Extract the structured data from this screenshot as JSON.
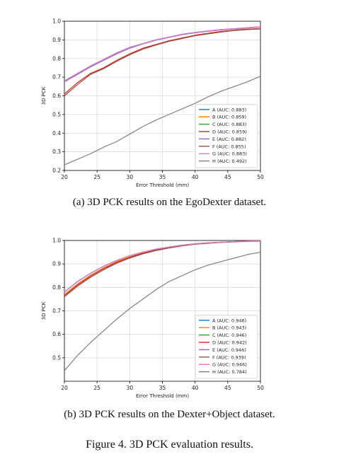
{
  "captions": {
    "a": "(a) 3D PCK results on the EgoDexter dataset.",
    "b": "(b) 3D PCK results on the Dexter+Object dataset.",
    "figure": "Figure 4. 3D PCK evaluation results."
  },
  "chart_data": [
    {
      "type": "line",
      "title": "",
      "xlabel": "Error Threshold (mm)",
      "ylabel": "3D PCK",
      "xlim": [
        20,
        50
      ],
      "ylim": [
        0.2,
        1.0
      ],
      "xticks": [
        "20",
        "25",
        "30",
        "35",
        "40",
        "45",
        "50"
      ],
      "yticks": [
        "0.2",
        "0.3",
        "0.4",
        "0.5",
        "0.6",
        "0.7",
        "0.8",
        "0.9",
        "1.0"
      ],
      "grid": true,
      "legend_position": "lower-right",
      "x": [
        20,
        22,
        24,
        26,
        28,
        30,
        32,
        34,
        36,
        38,
        40,
        42,
        44,
        46,
        48,
        50
      ],
      "series": [
        {
          "name": "A (AUC: 0.883)",
          "color": "#1f77b4",
          "values": [
            0.68,
            0.72,
            0.76,
            0.795,
            0.83,
            0.86,
            0.88,
            0.9,
            0.915,
            0.93,
            0.94,
            0.948,
            0.955,
            0.96,
            0.965,
            0.97
          ]
        },
        {
          "name": "B (AUC: 0.859)",
          "color": "#ff7f0e",
          "values": [
            0.61,
            0.67,
            0.72,
            0.75,
            0.79,
            0.825,
            0.855,
            0.875,
            0.895,
            0.91,
            0.925,
            0.935,
            0.945,
            0.952,
            0.957,
            0.96
          ]
        },
        {
          "name": "C (AUC: 0.883)",
          "color": "#2ca02c",
          "values": [
            0.68,
            0.72,
            0.76,
            0.795,
            0.83,
            0.86,
            0.88,
            0.9,
            0.915,
            0.93,
            0.94,
            0.948,
            0.955,
            0.96,
            0.965,
            0.97
          ]
        },
        {
          "name": "D (AUC: 0.859)",
          "color": "#d62728",
          "values": [
            0.61,
            0.67,
            0.72,
            0.75,
            0.79,
            0.825,
            0.855,
            0.875,
            0.895,
            0.91,
            0.925,
            0.935,
            0.945,
            0.952,
            0.957,
            0.96
          ]
        },
        {
          "name": "E (AUC: 0.882)",
          "color": "#9467bd",
          "values": [
            0.675,
            0.715,
            0.755,
            0.79,
            0.825,
            0.855,
            0.878,
            0.898,
            0.913,
            0.928,
            0.938,
            0.946,
            0.953,
            0.958,
            0.963,
            0.968
          ]
        },
        {
          "name": "F (AUC: 0.855)",
          "color": "#8c564b",
          "values": [
            0.6,
            0.66,
            0.715,
            0.745,
            0.785,
            0.82,
            0.85,
            0.872,
            0.892,
            0.907,
            0.922,
            0.932,
            0.942,
            0.95,
            0.955,
            0.958
          ]
        },
        {
          "name": "G (AUC: 0.883)",
          "color": "#e377c2",
          "values": [
            0.68,
            0.72,
            0.76,
            0.795,
            0.83,
            0.86,
            0.88,
            0.9,
            0.915,
            0.93,
            0.94,
            0.948,
            0.955,
            0.96,
            0.965,
            0.97
          ]
        },
        {
          "name": "H (AUC: 0.492)",
          "color": "#7f7f7f",
          "values": [
            0.23,
            0.26,
            0.29,
            0.325,
            0.355,
            0.395,
            0.435,
            0.47,
            0.5,
            0.53,
            0.56,
            0.595,
            0.625,
            0.65,
            0.675,
            0.705
          ]
        }
      ]
    },
    {
      "type": "line",
      "title": "",
      "xlabel": "Error Threshold (mm)",
      "ylabel": "3D PCK",
      "xlim": [
        20,
        50
      ],
      "ylim": [
        0.4,
        1.0
      ],
      "xticks": [
        "20",
        "25",
        "30",
        "35",
        "40",
        "45",
        "50"
      ],
      "yticks": [
        "0.5",
        "0.6",
        "0.7",
        "0.8",
        "0.9",
        "1.0"
      ],
      "grid": true,
      "legend_position": "lower-right",
      "x": [
        20,
        22,
        24,
        26,
        28,
        30,
        32,
        34,
        36,
        38,
        40,
        42,
        44,
        46,
        48,
        50
      ],
      "series": [
        {
          "name": "A (AUC: 0.946)",
          "color": "#1f77b4",
          "values": [
            0.78,
            0.825,
            0.86,
            0.89,
            0.915,
            0.935,
            0.95,
            0.963,
            0.972,
            0.98,
            0.986,
            0.99,
            0.993,
            0.995,
            0.997,
            0.998
          ]
        },
        {
          "name": "B (AUC: 0.943)",
          "color": "#ff7f0e",
          "values": [
            0.77,
            0.815,
            0.852,
            0.883,
            0.91,
            0.93,
            0.947,
            0.96,
            0.97,
            0.978,
            0.985,
            0.989,
            0.992,
            0.995,
            0.997,
            0.998
          ]
        },
        {
          "name": "C (AUC: 0.946)",
          "color": "#2ca02c",
          "values": [
            0.78,
            0.825,
            0.86,
            0.89,
            0.915,
            0.935,
            0.95,
            0.963,
            0.972,
            0.98,
            0.986,
            0.99,
            0.993,
            0.995,
            0.997,
            0.998
          ]
        },
        {
          "name": "D (AUC: 0.942)",
          "color": "#d62728",
          "values": [
            0.765,
            0.81,
            0.848,
            0.88,
            0.907,
            0.928,
            0.945,
            0.959,
            0.969,
            0.978,
            0.985,
            0.989,
            0.992,
            0.995,
            0.997,
            0.998
          ]
        },
        {
          "name": "E (AUC: 0.946)",
          "color": "#9467bd",
          "values": [
            0.78,
            0.825,
            0.86,
            0.89,
            0.915,
            0.935,
            0.95,
            0.963,
            0.972,
            0.98,
            0.986,
            0.99,
            0.993,
            0.995,
            0.997,
            0.998
          ]
        },
        {
          "name": "F (AUC: 0.939)",
          "color": "#8c564b",
          "values": [
            0.76,
            0.805,
            0.843,
            0.875,
            0.903,
            0.925,
            0.943,
            0.957,
            0.968,
            0.977,
            0.984,
            0.988,
            0.992,
            0.994,
            0.996,
            0.997
          ]
        },
        {
          "name": "G (AUC: 0.946)",
          "color": "#e377c2",
          "values": [
            0.78,
            0.825,
            0.86,
            0.89,
            0.915,
            0.935,
            0.95,
            0.963,
            0.972,
            0.98,
            0.986,
            0.99,
            0.993,
            0.995,
            0.997,
            0.998
          ]
        },
        {
          "name": "H (AUC: 0.784)",
          "color": "#7f7f7f",
          "values": [
            0.445,
            0.51,
            0.565,
            0.615,
            0.665,
            0.71,
            0.75,
            0.79,
            0.825,
            0.85,
            0.875,
            0.895,
            0.91,
            0.925,
            0.94,
            0.95
          ]
        }
      ]
    }
  ]
}
